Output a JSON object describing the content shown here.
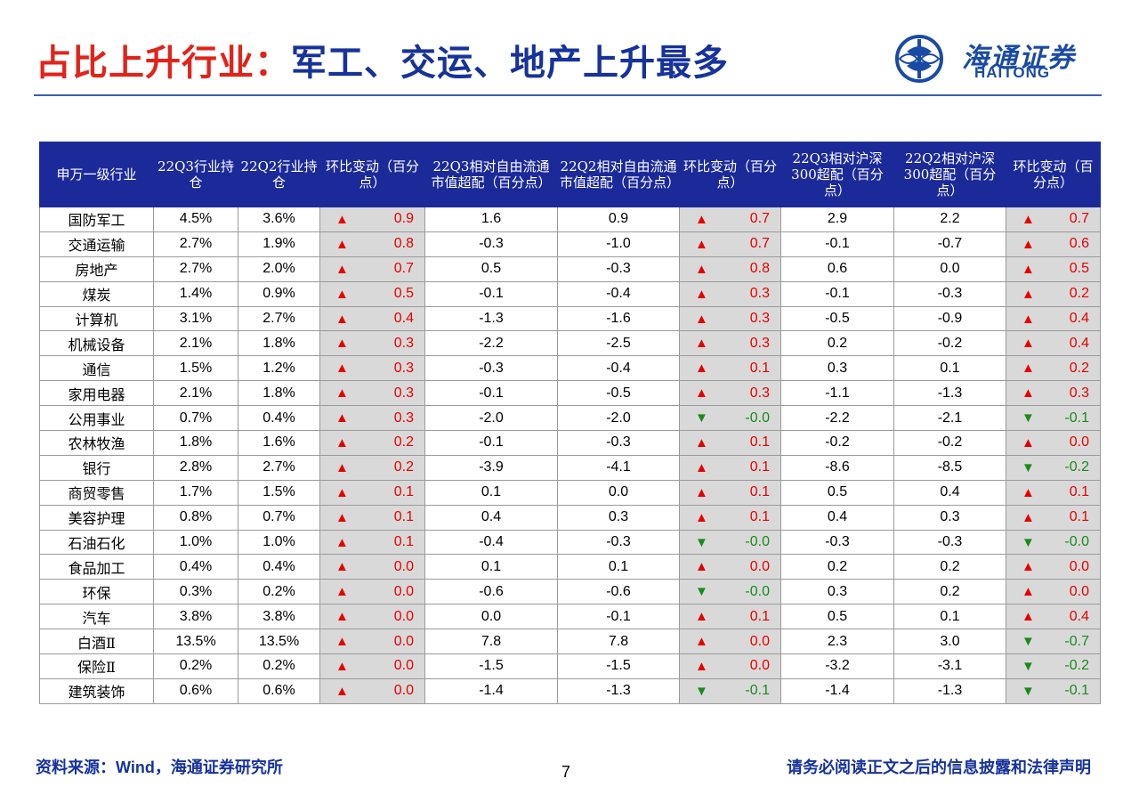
{
  "title": {
    "part1": "占比上升行业：",
    "part2": "军工、交运、地产上升最多"
  },
  "logo": {
    "cn": "海通证券",
    "en": "HAITONG"
  },
  "table": {
    "headers": [
      "申万一级行业",
      "22Q3行业持仓",
      "22Q2行业持仓",
      "环比变动（百分点）",
      "22Q3相对自由流通市值超配（百分点）",
      "22Q2相对自由流通市值超配（百分点）",
      "环比变动（百分点）",
      "22Q3相对沪深300超配（百分点）",
      "22Q2相对沪深300超配（百分点）",
      "环比变动（百分点）"
    ],
    "rows": [
      {
        "industry": "国防军工",
        "q3": "4.5%",
        "q2": "3.6%",
        "chg1": {
          "dir": "up",
          "v": "0.9"
        },
        "ff_q3": "1.6",
        "ff_q2": "0.9",
        "chg2": {
          "dir": "up",
          "v": "0.7"
        },
        "hs_q3": "2.9",
        "hs_q2": "2.2",
        "chg3": {
          "dir": "up",
          "v": "0.7"
        }
      },
      {
        "industry": "交通运输",
        "q3": "2.7%",
        "q2": "1.9%",
        "chg1": {
          "dir": "up",
          "v": "0.8"
        },
        "ff_q3": "-0.3",
        "ff_q2": "-1.0",
        "chg2": {
          "dir": "up",
          "v": "0.7"
        },
        "hs_q3": "-0.1",
        "hs_q2": "-0.7",
        "chg3": {
          "dir": "up",
          "v": "0.6"
        }
      },
      {
        "industry": "房地产",
        "q3": "2.7%",
        "q2": "2.0%",
        "chg1": {
          "dir": "up",
          "v": "0.7"
        },
        "ff_q3": "0.5",
        "ff_q2": "-0.3",
        "chg2": {
          "dir": "up",
          "v": "0.8"
        },
        "hs_q3": "0.6",
        "hs_q2": "0.0",
        "chg3": {
          "dir": "up",
          "v": "0.5"
        }
      },
      {
        "industry": "煤炭",
        "q3": "1.4%",
        "q2": "0.9%",
        "chg1": {
          "dir": "up",
          "v": "0.5"
        },
        "ff_q3": "-0.1",
        "ff_q2": "-0.4",
        "chg2": {
          "dir": "up",
          "v": "0.3"
        },
        "hs_q3": "-0.1",
        "hs_q2": "-0.3",
        "chg3": {
          "dir": "up",
          "v": "0.2"
        }
      },
      {
        "industry": "计算机",
        "q3": "3.1%",
        "q2": "2.7%",
        "chg1": {
          "dir": "up",
          "v": "0.4"
        },
        "ff_q3": "-1.3",
        "ff_q2": "-1.6",
        "chg2": {
          "dir": "up",
          "v": "0.3"
        },
        "hs_q3": "-0.5",
        "hs_q2": "-0.9",
        "chg3": {
          "dir": "up",
          "v": "0.4"
        }
      },
      {
        "industry": "机械设备",
        "q3": "2.1%",
        "q2": "1.8%",
        "chg1": {
          "dir": "up",
          "v": "0.3"
        },
        "ff_q3": "-2.2",
        "ff_q2": "-2.5",
        "chg2": {
          "dir": "up",
          "v": "0.3"
        },
        "hs_q3": "0.2",
        "hs_q2": "-0.2",
        "chg3": {
          "dir": "up",
          "v": "0.4"
        }
      },
      {
        "industry": "通信",
        "q3": "1.5%",
        "q2": "1.2%",
        "chg1": {
          "dir": "up",
          "v": "0.3"
        },
        "ff_q3": "-0.3",
        "ff_q2": "-0.4",
        "chg2": {
          "dir": "up",
          "v": "0.1"
        },
        "hs_q3": "0.3",
        "hs_q2": "0.1",
        "chg3": {
          "dir": "up",
          "v": "0.2"
        }
      },
      {
        "industry": "家用电器",
        "q3": "2.1%",
        "q2": "1.8%",
        "chg1": {
          "dir": "up",
          "v": "0.3"
        },
        "ff_q3": "-0.1",
        "ff_q2": "-0.5",
        "chg2": {
          "dir": "up",
          "v": "0.3"
        },
        "hs_q3": "-1.1",
        "hs_q2": "-1.3",
        "chg3": {
          "dir": "up",
          "v": "0.3"
        }
      },
      {
        "industry": "公用事业",
        "q3": "0.7%",
        "q2": "0.4%",
        "chg1": {
          "dir": "up",
          "v": "0.3"
        },
        "ff_q3": "-2.0",
        "ff_q2": "-2.0",
        "chg2": {
          "dir": "down",
          "v": "-0.0"
        },
        "hs_q3": "-2.2",
        "hs_q2": "-2.1",
        "chg3": {
          "dir": "down",
          "v": "-0.1"
        }
      },
      {
        "industry": "农林牧渔",
        "q3": "1.8%",
        "q2": "1.6%",
        "chg1": {
          "dir": "up",
          "v": "0.2"
        },
        "ff_q3": "-0.1",
        "ff_q2": "-0.3",
        "chg2": {
          "dir": "up",
          "v": "0.1"
        },
        "hs_q3": "-0.2",
        "hs_q2": "-0.2",
        "chg3": {
          "dir": "up",
          "v": "0.0"
        }
      },
      {
        "industry": "银行",
        "q3": "2.8%",
        "q2": "2.7%",
        "chg1": {
          "dir": "up",
          "v": "0.2"
        },
        "ff_q3": "-3.9",
        "ff_q2": "-4.1",
        "chg2": {
          "dir": "up",
          "v": "0.1"
        },
        "hs_q3": "-8.6",
        "hs_q2": "-8.5",
        "chg3": {
          "dir": "down",
          "v": "-0.2"
        }
      },
      {
        "industry": "商贸零售",
        "q3": "1.7%",
        "q2": "1.5%",
        "chg1": {
          "dir": "up",
          "v": "0.1"
        },
        "ff_q3": "0.1",
        "ff_q2": "0.0",
        "chg2": {
          "dir": "up",
          "v": "0.1"
        },
        "hs_q3": "0.5",
        "hs_q2": "0.4",
        "chg3": {
          "dir": "up",
          "v": "0.1"
        }
      },
      {
        "industry": "美容护理",
        "q3": "0.8%",
        "q2": "0.7%",
        "chg1": {
          "dir": "up",
          "v": "0.1"
        },
        "ff_q3": "0.4",
        "ff_q2": "0.3",
        "chg2": {
          "dir": "up",
          "v": "0.1"
        },
        "hs_q3": "0.4",
        "hs_q2": "0.3",
        "chg3": {
          "dir": "up",
          "v": "0.1"
        }
      },
      {
        "industry": "石油石化",
        "q3": "1.0%",
        "q2": "1.0%",
        "chg1": {
          "dir": "up",
          "v": "0.1"
        },
        "ff_q3": "-0.4",
        "ff_q2": "-0.3",
        "chg2": {
          "dir": "down",
          "v": "-0.0"
        },
        "hs_q3": "-0.3",
        "hs_q2": "-0.3",
        "chg3": {
          "dir": "down",
          "v": "-0.0"
        }
      },
      {
        "industry": "食品加工",
        "q3": "0.4%",
        "q2": "0.4%",
        "chg1": {
          "dir": "up",
          "v": "0.0"
        },
        "ff_q3": "0.1",
        "ff_q2": "0.1",
        "chg2": {
          "dir": "up",
          "v": "0.0"
        },
        "hs_q3": "0.2",
        "hs_q2": "0.2",
        "chg3": {
          "dir": "up",
          "v": "0.0"
        }
      },
      {
        "industry": "环保",
        "q3": "0.3%",
        "q2": "0.2%",
        "chg1": {
          "dir": "up",
          "v": "0.0"
        },
        "ff_q3": "-0.6",
        "ff_q2": "-0.6",
        "chg2": {
          "dir": "down",
          "v": "-0.0"
        },
        "hs_q3": "0.3",
        "hs_q2": "0.2",
        "chg3": {
          "dir": "up",
          "v": "0.0"
        }
      },
      {
        "industry": "汽车",
        "q3": "3.8%",
        "q2": "3.8%",
        "chg1": {
          "dir": "up",
          "v": "0.0"
        },
        "ff_q3": "0.0",
        "ff_q2": "-0.1",
        "chg2": {
          "dir": "up",
          "v": "0.1"
        },
        "hs_q3": "0.5",
        "hs_q2": "0.1",
        "chg3": {
          "dir": "up",
          "v": "0.4"
        }
      },
      {
        "industry": "白酒Ⅱ",
        "q3": "13.5%",
        "q2": "13.5%",
        "chg1": {
          "dir": "up",
          "v": "0.0"
        },
        "ff_q3": "7.8",
        "ff_q2": "7.8",
        "chg2": {
          "dir": "up",
          "v": "0.0"
        },
        "hs_q3": "2.3",
        "hs_q2": "3.0",
        "chg3": {
          "dir": "down",
          "v": "-0.7"
        }
      },
      {
        "industry": "保险Ⅱ",
        "q3": "0.2%",
        "q2": "0.2%",
        "chg1": {
          "dir": "up",
          "v": "0.0"
        },
        "ff_q3": "-1.5",
        "ff_q2": "-1.5",
        "chg2": {
          "dir": "up",
          "v": "0.0"
        },
        "hs_q3": "-3.2",
        "hs_q2": "-3.1",
        "chg3": {
          "dir": "down",
          "v": "-0.2"
        }
      },
      {
        "industry": "建筑装饰",
        "q3": "0.6%",
        "q2": "0.6%",
        "chg1": {
          "dir": "up",
          "v": "0.0"
        },
        "ff_q3": "-1.4",
        "ff_q2": "-1.3",
        "chg2": {
          "dir": "down",
          "v": "-0.1"
        },
        "hs_q3": "-1.4",
        "hs_q2": "-1.3",
        "chg3": {
          "dir": "down",
          "v": "-0.1"
        }
      }
    ]
  },
  "arrows": {
    "up": "▲",
    "down": "▼"
  },
  "colors": {
    "header_bg": "#1c2a99",
    "up": "#e60000",
    "down": "#1a8a1a",
    "title_red": "#e0241b",
    "title_blue": "#17329a"
  },
  "footer": {
    "source_prefix": "资料来源：",
    "source_wind": "Wind",
    "source_rest": "，海通证券研究所",
    "page": "7",
    "disclaimer": "请务必阅读正文之后的信息披露和法律声明"
  }
}
